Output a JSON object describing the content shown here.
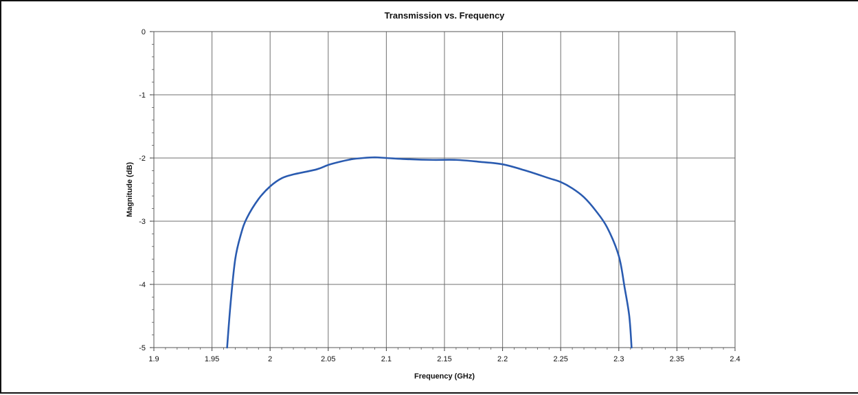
{
  "chart_data": {
    "type": "line",
    "title": "Transmission vs. Frequency",
    "xlabel": "Frequency (GHz)",
    "ylabel": "Magnitude (dB)",
    "xlim": [
      1.9,
      2.4
    ],
    "ylim": [
      -5,
      0
    ],
    "x_ticks": [
      "1.9",
      "1.95",
      "2",
      "2.05",
      "2.1",
      "2.15",
      "2.2",
      "2.25",
      "2.3",
      "2.35",
      "2.4"
    ],
    "y_ticks": [
      "0",
      "-1",
      "-2",
      "-3",
      "-4",
      "-5"
    ],
    "grid": true,
    "line_color": "#2a5bb0",
    "series": [
      {
        "x": [
          1.963,
          1.966,
          1.97,
          1.975,
          1.98,
          1.99,
          2.0,
          2.01,
          2.02,
          2.04,
          2.05,
          2.06,
          2.07,
          2.08,
          2.09,
          2.1,
          2.12,
          2.14,
          2.16,
          2.18,
          2.2,
          2.22,
          2.24,
          2.25,
          2.26,
          2.27,
          2.28,
          2.29,
          2.3,
          2.305,
          2.309,
          2.311
        ],
        "y": [
          -5.0,
          -4.3,
          -3.6,
          -3.2,
          -2.95,
          -2.65,
          -2.45,
          -2.32,
          -2.26,
          -2.18,
          -2.11,
          -2.06,
          -2.02,
          -2.0,
          -1.99,
          -2.0,
          -2.02,
          -2.03,
          -2.03,
          -2.06,
          -2.1,
          -2.2,
          -2.32,
          -2.38,
          -2.48,
          -2.62,
          -2.83,
          -3.1,
          -3.55,
          -4.05,
          -4.5,
          -5.0
        ]
      }
    ]
  }
}
